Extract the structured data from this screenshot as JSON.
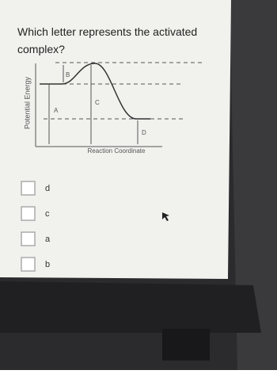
{
  "question": "Which letter represents the activated complex?",
  "diagram": {
    "y_label": "Potential Energy",
    "x_label": "Reaction Coordinate",
    "labels": [
      "A",
      "B",
      "C",
      "D"
    ]
  },
  "options": [
    "d",
    "c",
    "a",
    "b"
  ]
}
